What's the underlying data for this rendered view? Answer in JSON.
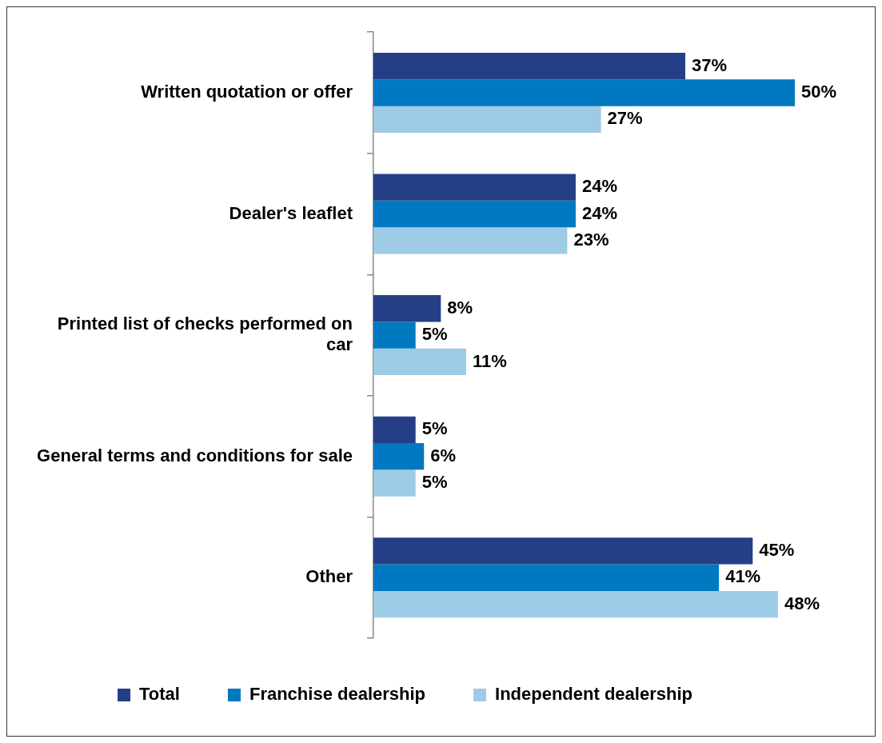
{
  "chart_data": {
    "type": "bar",
    "orientation": "horizontal",
    "categories": [
      "Written quotation or offer",
      "Dealer's leaflet",
      "Printed list of checks performed on car",
      "General terms and conditions for sale",
      "Other"
    ],
    "series": [
      {
        "name": "Total",
        "color": "#253f87",
        "values": [
          37,
          24,
          8,
          5,
          45
        ],
        "value_labels": [
          "37%",
          "24%",
          "8%",
          "5%",
          "45%"
        ]
      },
      {
        "name": "Franchise dealership",
        "color": "#0079c1",
        "values": [
          50,
          24,
          5,
          6,
          41
        ],
        "value_labels": [
          "50%",
          "24%",
          "5%",
          "6%",
          "41%"
        ]
      },
      {
        "name": "Independent dealership",
        "color": "#9dcbe6",
        "values": [
          27,
          23,
          11,
          5,
          48
        ],
        "value_labels": [
          "27%",
          "23%",
          "11%",
          "5%",
          "48%"
        ]
      }
    ],
    "legend": "bottom",
    "grid": false
  }
}
